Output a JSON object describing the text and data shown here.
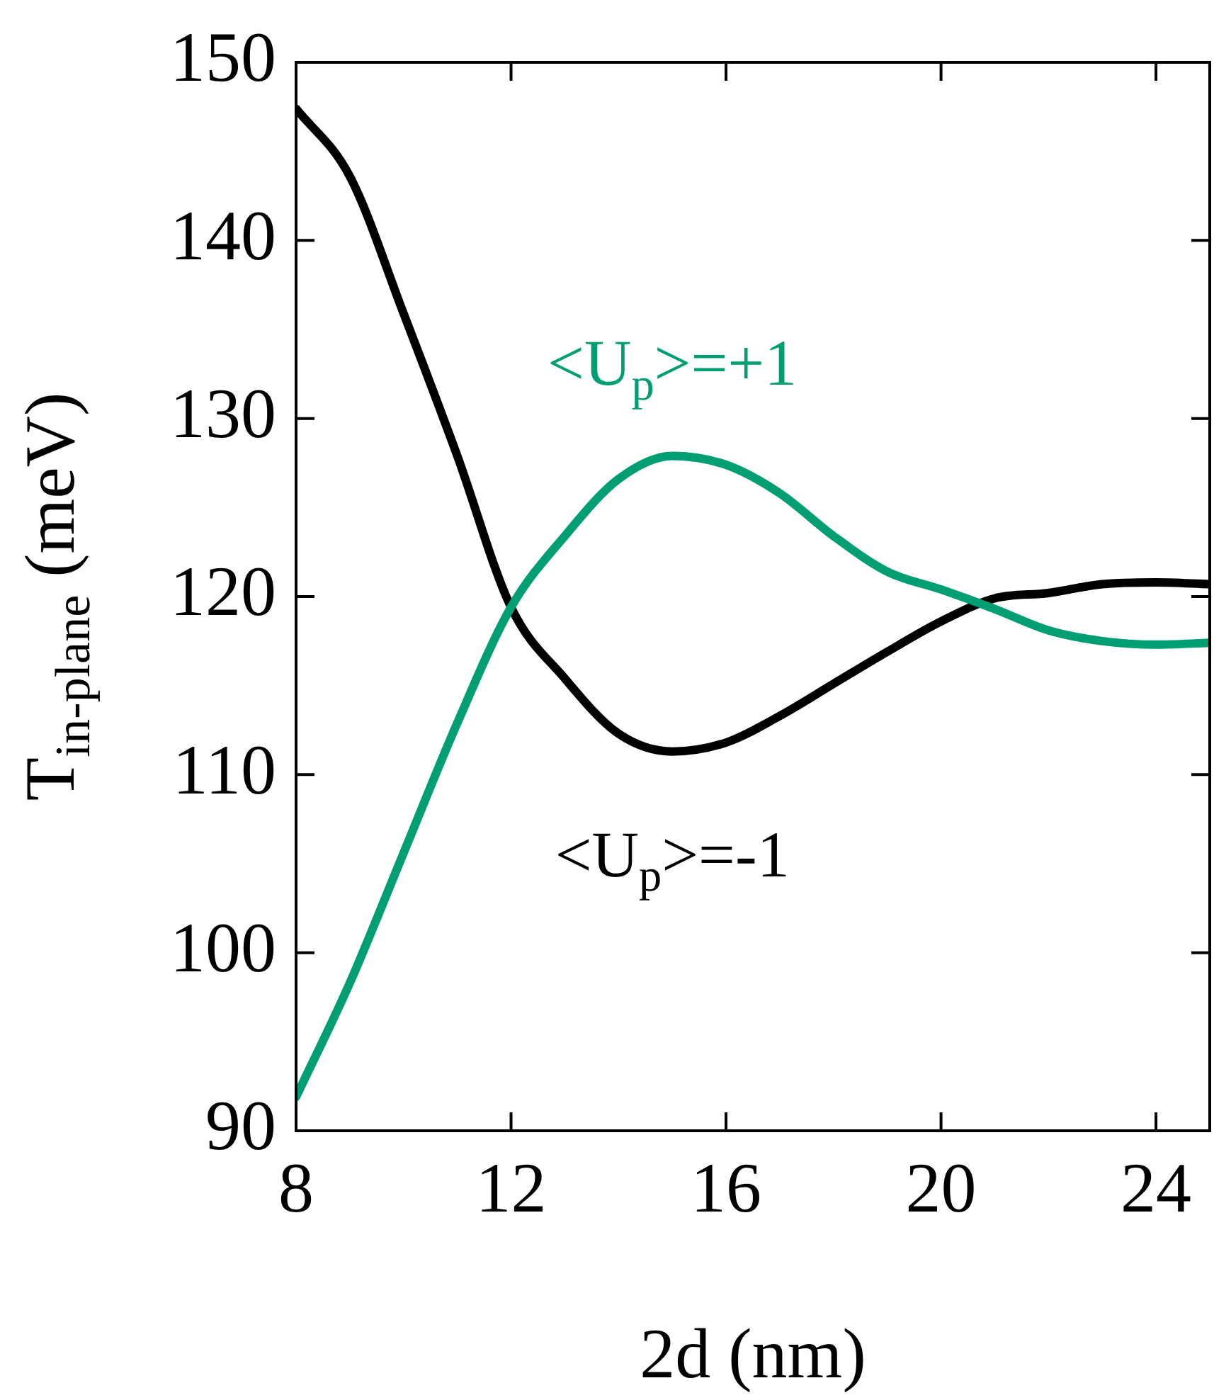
{
  "chart_data": {
    "type": "line",
    "xlabel": "2d (nm)",
    "ylabel": "T$_{in-plane}$ (meV)",
    "x": [
      8,
      9,
      10,
      11,
      12,
      13,
      14,
      15,
      16,
      17,
      18,
      19,
      20,
      21,
      22,
      23,
      24,
      25
    ],
    "xlim": [
      8,
      25
    ],
    "xticks": [
      8,
      12,
      16,
      20,
      24
    ],
    "ylim": [
      90,
      150
    ],
    "yticks": [
      90,
      100,
      110,
      120,
      130,
      140,
      150
    ],
    "grid": false,
    "legend": false,
    "marker": "none",
    "line_style": "solid",
    "series": [
      {
        "name": "<U$_{p}$>=+1",
        "color": "#009e73",
        "values": [
          91.9,
          98.3,
          105.6,
          112.9,
          119.4,
          123.4,
          126.6,
          127.9,
          127.4,
          125.8,
          123.4,
          121.4,
          120.4,
          119.3,
          118.1,
          117.5,
          117.3,
          117.4
        ]
      },
      {
        "name": "<U$_{p}$>=-1",
        "color": "#000000",
        "values": [
          147.4,
          143.6,
          135.9,
          127.9,
          119.4,
          115.4,
          112.3,
          111.3,
          111.8,
          113.3,
          115.1,
          116.9,
          118.6,
          119.9,
          120.2,
          120.7,
          120.8,
          120.7
        ]
      }
    ]
  }
}
